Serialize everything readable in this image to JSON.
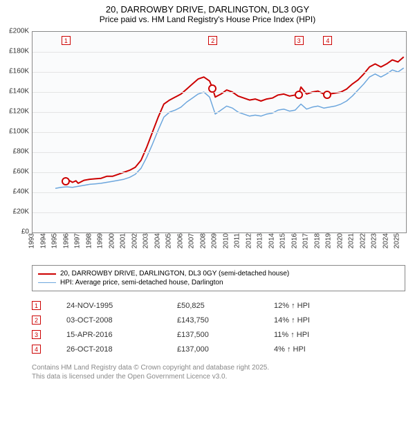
{
  "title": {
    "line1": "20, DARROWBY DRIVE, DARLINGTON, DL3 0GY",
    "line2": "Price paid vs. HM Land Registry's House Price Index (HPI)"
  },
  "chart": {
    "type": "line",
    "background_color": "#fafbfc",
    "grid_color": "#e4e4e4",
    "axis_color": "#888888",
    "ylim": [
      0,
      200000
    ],
    "ytick_step": 20000,
    "y_ticks": [
      {
        "v": 0,
        "label": "£0"
      },
      {
        "v": 20000,
        "label": "£20K"
      },
      {
        "v": 40000,
        "label": "£40K"
      },
      {
        "v": 60000,
        "label": "£60K"
      },
      {
        "v": 80000,
        "label": "£80K"
      },
      {
        "v": 100000,
        "label": "£100K"
      },
      {
        "v": 120000,
        "label": "£120K"
      },
      {
        "v": 140000,
        "label": "£140K"
      },
      {
        "v": 160000,
        "label": "£160K"
      },
      {
        "v": 180000,
        "label": "£180K"
      },
      {
        "v": 200000,
        "label": "£200K"
      }
    ],
    "xlim": [
      1993,
      2025.7
    ],
    "x_ticks": [
      1993,
      1994,
      1995,
      1996,
      1997,
      1998,
      1999,
      2000,
      2001,
      2002,
      2003,
      2004,
      2005,
      2006,
      2007,
      2008,
      2009,
      2010,
      2011,
      2012,
      2013,
      2014,
      2015,
      2016,
      2017,
      2018,
      2019,
      2020,
      2021,
      2022,
      2023,
      2024,
      2025
    ],
    "series": [
      {
        "name": "20, DARROWBY DRIVE, DARLINGTON, DL3 0GY (semi-detached house)",
        "color": "#cc0000",
        "line_width": 2,
        "data": [
          [
            1995.9,
            50825
          ],
          [
            1996.2,
            52000
          ],
          [
            1996.5,
            50000
          ],
          [
            1996.8,
            51500
          ],
          [
            1997.0,
            49000
          ],
          [
            1997.5,
            52000
          ],
          [
            1998.0,
            53000
          ],
          [
            1998.5,
            53500
          ],
          [
            1999.0,
            54000
          ],
          [
            1999.5,
            56000
          ],
          [
            2000.0,
            56000
          ],
          [
            2000.5,
            58000
          ],
          [
            2001.0,
            60000
          ],
          [
            2001.5,
            62000
          ],
          [
            2002.0,
            65000
          ],
          [
            2002.5,
            72000
          ],
          [
            2003.0,
            85000
          ],
          [
            2003.5,
            100000
          ],
          [
            2004.0,
            115000
          ],
          [
            2004.5,
            128000
          ],
          [
            2005.0,
            132000
          ],
          [
            2005.5,
            135000
          ],
          [
            2006.0,
            138000
          ],
          [
            2006.5,
            143000
          ],
          [
            2007.0,
            148000
          ],
          [
            2007.5,
            153000
          ],
          [
            2008.0,
            155000
          ],
          [
            2008.5,
            151000
          ],
          [
            2008.76,
            143750
          ],
          [
            2009.0,
            135000
          ],
          [
            2009.5,
            138000
          ],
          [
            2010.0,
            142000
          ],
          [
            2010.5,
            140000
          ],
          [
            2011.0,
            136000
          ],
          [
            2011.5,
            134000
          ],
          [
            2012.0,
            132000
          ],
          [
            2012.5,
            133000
          ],
          [
            2013.0,
            131000
          ],
          [
            2013.5,
            133000
          ],
          [
            2014.0,
            134000
          ],
          [
            2014.5,
            137000
          ],
          [
            2015.0,
            138000
          ],
          [
            2015.5,
            136000
          ],
          [
            2016.0,
            137000
          ],
          [
            2016.29,
            137500
          ],
          [
            2016.5,
            145000
          ],
          [
            2017.0,
            138000
          ],
          [
            2017.5,
            140000
          ],
          [
            2018.0,
            141000
          ],
          [
            2018.5,
            138000
          ],
          [
            2018.82,
            137000
          ],
          [
            2019.0,
            138000
          ],
          [
            2019.5,
            139000
          ],
          [
            2020.0,
            140000
          ],
          [
            2020.5,
            143000
          ],
          [
            2021.0,
            148000
          ],
          [
            2021.5,
            152000
          ],
          [
            2022.0,
            158000
          ],
          [
            2022.5,
            165000
          ],
          [
            2023.0,
            168000
          ],
          [
            2023.5,
            165000
          ],
          [
            2024.0,
            168000
          ],
          [
            2024.5,
            172000
          ],
          [
            2025.0,
            170000
          ],
          [
            2025.5,
            175000
          ]
        ]
      },
      {
        "name": "HPI: Average price, semi-detached house, Darlington",
        "color": "#6ca6dd",
        "line_width": 1.5,
        "data": [
          [
            1995.0,
            44000
          ],
          [
            1995.5,
            45000
          ],
          [
            1996.0,
            45500
          ],
          [
            1996.5,
            45000
          ],
          [
            1997.0,
            46000
          ],
          [
            1997.5,
            47000
          ],
          [
            1998.0,
            48000
          ],
          [
            1998.5,
            48500
          ],
          [
            1999.0,
            49000
          ],
          [
            1999.5,
            50000
          ],
          [
            2000.0,
            51000
          ],
          [
            2000.5,
            52000
          ],
          [
            2001.0,
            53000
          ],
          [
            2001.5,
            55000
          ],
          [
            2002.0,
            58000
          ],
          [
            2002.5,
            64000
          ],
          [
            2003.0,
            75000
          ],
          [
            2003.5,
            88000
          ],
          [
            2004.0,
            102000
          ],
          [
            2004.5,
            115000
          ],
          [
            2005.0,
            120000
          ],
          [
            2005.5,
            122000
          ],
          [
            2006.0,
            125000
          ],
          [
            2006.5,
            130000
          ],
          [
            2007.0,
            134000
          ],
          [
            2007.5,
            138000
          ],
          [
            2008.0,
            140000
          ],
          [
            2008.5,
            135000
          ],
          [
            2009.0,
            118000
          ],
          [
            2009.5,
            122000
          ],
          [
            2010.0,
            126000
          ],
          [
            2010.5,
            124000
          ],
          [
            2011.0,
            120000
          ],
          [
            2011.5,
            118000
          ],
          [
            2012.0,
            116000
          ],
          [
            2012.5,
            117000
          ],
          [
            2013.0,
            116000
          ],
          [
            2013.5,
            118000
          ],
          [
            2014.0,
            119000
          ],
          [
            2014.5,
            122000
          ],
          [
            2015.0,
            123000
          ],
          [
            2015.5,
            121000
          ],
          [
            2016.0,
            122000
          ],
          [
            2016.5,
            128000
          ],
          [
            2017.0,
            123000
          ],
          [
            2017.5,
            125000
          ],
          [
            2018.0,
            126000
          ],
          [
            2018.5,
            124000
          ],
          [
            2019.0,
            125000
          ],
          [
            2019.5,
            126000
          ],
          [
            2020.0,
            128000
          ],
          [
            2020.5,
            131000
          ],
          [
            2021.0,
            136000
          ],
          [
            2021.5,
            142000
          ],
          [
            2022.0,
            148000
          ],
          [
            2022.5,
            155000
          ],
          [
            2023.0,
            158000
          ],
          [
            2023.5,
            155000
          ],
          [
            2024.0,
            158000
          ],
          [
            2024.5,
            162000
          ],
          [
            2025.0,
            160000
          ],
          [
            2025.5,
            164000
          ]
        ]
      }
    ],
    "markers": [
      {
        "n": "1",
        "x": 1995.9,
        "y": 50825,
        "color": "#cc0000"
      },
      {
        "n": "2",
        "x": 2008.76,
        "y": 143750,
        "color": "#cc0000"
      },
      {
        "n": "3",
        "x": 2016.29,
        "y": 137500,
        "color": "#cc0000"
      },
      {
        "n": "4",
        "x": 2018.82,
        "y": 137000,
        "color": "#cc0000"
      }
    ]
  },
  "legend": [
    {
      "color": "#cc0000",
      "width": 2,
      "label": "20, DARROWBY DRIVE, DARLINGTON, DL3 0GY (semi-detached house)"
    },
    {
      "color": "#6ca6dd",
      "width": 1.5,
      "label": "HPI: Average price, semi-detached house, Darlington"
    }
  ],
  "sales": [
    {
      "n": "1",
      "date": "24-NOV-1995",
      "price": "£50,825",
      "delta": "12% ↑ HPI"
    },
    {
      "n": "2",
      "date": "03-OCT-2008",
      "price": "£143,750",
      "delta": "14% ↑ HPI"
    },
    {
      "n": "3",
      "date": "15-APR-2016",
      "price": "£137,500",
      "delta": "11% ↑ HPI"
    },
    {
      "n": "4",
      "date": "26-OCT-2018",
      "price": "£137,000",
      "delta": "4% ↑ HPI"
    }
  ],
  "footnote": {
    "line1": "Contains HM Land Registry data © Crown copyright and database right 2025.",
    "line2": "This data is licensed under the Open Government Licence v3.0."
  }
}
